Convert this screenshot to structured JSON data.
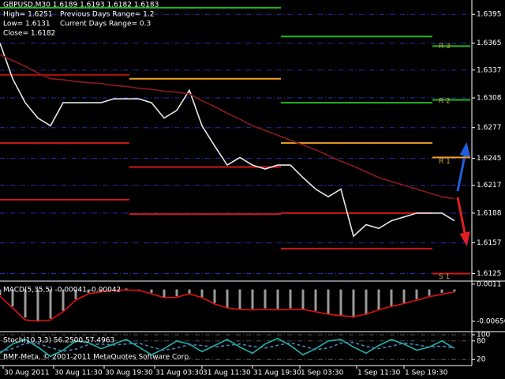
{
  "chart_data": [
    {
      "type": "line",
      "title": "GBPUSD,M30  1.6189 1.6193 1.6182 1.6183",
      "annotations": [
        "High= 1.6251",
        "Previous Days Range= 1.2",
        "Low= 1.6131",
        "Current Days Range= 0.3",
        "Close= 1.6182"
      ],
      "x": [
        0,
        4,
        8,
        12,
        16,
        20,
        24,
        28,
        32,
        36,
        40,
        44,
        48,
        52,
        56,
        60,
        64,
        68,
        72,
        76,
        80,
        84,
        88,
        92,
        96,
        100,
        104,
        108,
        112,
        116,
        120,
        124,
        128,
        132,
        136,
        140,
        144
      ],
      "series": [
        {
          "type": "line",
          "color": "#e8e8e8",
          "values": [
            1.6365,
            1.6328,
            1.6303,
            1.6287,
            1.6279,
            1.6303,
            1.6303,
            1.6303,
            1.6303,
            1.6307,
            1.6307,
            1.6307,
            1.6303,
            1.6287,
            1.6295,
            1.6316,
            1.6279,
            1.6258,
            1.6238,
            1.6246,
            1.6238,
            1.6234,
            1.6238,
            1.6238,
            1.6225,
            1.6213,
            1.6205,
            1.6213,
            1.6164,
            1.6176,
            1.6172,
            1.618,
            1.6184,
            1.6188,
            1.6188,
            1.6188,
            1.618
          ]
        },
        {
          "type": "line",
          "color": "#8b1a1a",
          "values": [
            1.6353,
            1.6347,
            1.6341,
            1.6334,
            1.6328,
            1.6327,
            1.6325,
            1.6324,
            1.6323,
            1.6321,
            1.632,
            1.6318,
            1.6317,
            1.6315,
            1.6314,
            1.6312,
            1.6305,
            1.6299,
            1.6292,
            1.6286,
            1.6279,
            1.6274,
            1.6269,
            1.6264,
            1.6259,
            1.6254,
            1.6248,
            1.6242,
            1.6237,
            1.6231,
            1.6225,
            1.6221,
            1.6217,
            1.6213,
            1.6209,
            1.6205,
            1.6203
          ]
        }
      ],
      "pivot_segments": [
        {
          "from": 0,
          "to": 41,
          "levels": [
            {
              "value": 1.6402,
              "color": "#22b822"
            },
            {
              "value": 1.6332,
              "color": "#b01010"
            },
            {
              "value": 1.6261,
              "color": "#d01818"
            },
            {
              "value": 1.6202,
              "color": "#d01818"
            }
          ]
        },
        {
          "from": 41,
          "to": 89,
          "levels": [
            {
              "value": 1.6402,
              "color": "#22b822"
            },
            {
              "value": 1.6328,
              "color": "#f0a020"
            },
            {
              "value": 1.6236,
              "color": "#d01818"
            },
            {
              "value": 1.6187,
              "color": "#d01818"
            }
          ]
        },
        {
          "from": 89,
          "to": 137,
          "levels": [
            {
              "value": 1.6372,
              "color": "#22b822"
            },
            {
              "value": 1.6303,
              "color": "#22b822"
            },
            {
              "value": 1.6261,
              "color": "#f0a020"
            },
            {
              "value": 1.6188,
              "color": "#d01818"
            },
            {
              "value": 1.6151,
              "color": "#d01818"
            }
          ]
        },
        {
          "from": 137,
          "to": 149,
          "levels": [
            {
              "value": 1.6362,
              "color": "#22b822"
            },
            {
              "value": 1.6306,
              "color": "#22b822"
            },
            {
              "value": 1.6246,
              "color": "#f0a020"
            },
            {
              "value": 1.6125,
              "color": "#d01818"
            }
          ]
        }
      ],
      "pivot_labels": [
        {
          "label": "R 3",
          "value": 1.6365
        },
        {
          "label": "R 2",
          "value": 1.6308
        },
        {
          "label": "R 1",
          "value": 1.6245
        },
        {
          "label": "S 1",
          "value": 1.6125
        }
      ],
      "xlim": [
        0,
        149
      ],
      "xticks": [
        {
          "value": 1,
          "label": "30 Aug 2011"
        },
        {
          "value": 17,
          "label": "30 Aug 11:30"
        },
        {
          "value": 33,
          "label": "30 Aug 19:30"
        },
        {
          "value": 49,
          "label": "31 Aug 03:30"
        },
        {
          "value": 64,
          "label": "31 Aug 11:30"
        },
        {
          "value": 80,
          "label": "31 Aug 19:30"
        },
        {
          "value": 95,
          "label": "1 Sep 03:30"
        },
        {
          "value": 113,
          "label": "1 Sep 11:30"
        },
        {
          "value": 128,
          "label": "1 Sep 19:30"
        }
      ],
      "ylim": [
        1.6118,
        1.641
      ],
      "yticks": [
        1.6395,
        1.6365,
        1.6337,
        1.6308,
        1.6277,
        1.6245,
        1.6217,
        1.6188,
        1.6157,
        1.6125
      ],
      "grid": true
    },
    {
      "type": "line",
      "title": "MACD(5,35,5) -0.00041 -0.00042",
      "x": [
        0,
        4,
        8,
        12,
        16,
        20,
        24,
        28,
        32,
        36,
        40,
        44,
        48,
        52,
        56,
        60,
        64,
        68,
        72,
        76,
        80,
        84,
        88,
        92,
        96,
        100,
        104,
        108,
        112,
        116,
        120,
        124,
        128,
        132,
        136,
        140,
        144
      ],
      "series": [
        {
          "type": "bar",
          "color": "#9a9a9a",
          "values": [
            -0.0012,
            -0.0035,
            -0.0058,
            -0.0066,
            -0.006,
            -0.0044,
            -0.002,
            -0.0007,
            -0.0003,
            0,
            0.0002,
            -0.0001,
            -0.0007,
            -0.0016,
            -0.0014,
            -0.0008,
            -0.0016,
            -0.0028,
            -0.0037,
            -0.004,
            -0.004,
            -0.0039,
            -0.004,
            -0.0039,
            -0.0041,
            -0.0044,
            -0.005,
            -0.0053,
            -0.0058,
            -0.0052,
            -0.0043,
            -0.0035,
            -0.0028,
            -0.002,
            -0.0013,
            -0.0007,
            -0.0004
          ]
        },
        {
          "type": "line",
          "color": "#e01010",
          "values": [
            -0.0014,
            -0.0038,
            -0.0063,
            -0.0065,
            -0.0063,
            -0.0046,
            -0.0022,
            -0.0009,
            -0.0005,
            -0.0002,
            -0.0001,
            -0.0002,
            -0.0009,
            -0.0017,
            -0.0016,
            -0.0009,
            -0.0017,
            -0.003,
            -0.0038,
            -0.0041,
            -0.0042,
            -0.0041,
            -0.0042,
            -0.0041,
            -0.0041,
            -0.0046,
            -0.0051,
            -0.0054,
            -0.0056,
            -0.0051,
            -0.0042,
            -0.0035,
            -0.0029,
            -0.0022,
            -0.0015,
            -0.001,
            -0.0005
          ]
        }
      ],
      "xlim": [
        0,
        149
      ],
      "ylim": [
        -0.0069,
        0.0014
      ],
      "yticks": [
        0.0011,
        -0.00656
      ],
      "grid": false
    },
    {
      "type": "line",
      "title": "Stoch(10,3,3) 56.2500 57.4963",
      "x": [
        0,
        4,
        8,
        12,
        16,
        20,
        24,
        28,
        32,
        36,
        40,
        44,
        48,
        52,
        56,
        60,
        64,
        68,
        72,
        76,
        80,
        84,
        88,
        92,
        96,
        100,
        104,
        108,
        112,
        116,
        120,
        124,
        128,
        132,
        136,
        140,
        144
      ],
      "series": [
        {
          "type": "line",
          "color": "#20b2aa",
          "values": [
            40,
            70,
            85,
            60,
            30,
            50,
            80,
            75,
            55,
            70,
            85,
            60,
            35,
            55,
            80,
            70,
            45,
            65,
            85,
            60,
            40,
            70,
            88,
            65,
            35,
            55,
            80,
            85,
            60,
            40,
            65,
            85,
            70,
            50,
            60,
            80,
            56
          ]
        },
        {
          "type": "line",
          "color": "#4682b4",
          "dashed": true,
          "values": [
            45,
            55,
            72,
            72,
            58,
            47,
            53,
            68,
            70,
            67,
            70,
            73,
            60,
            50,
            57,
            68,
            65,
            60,
            65,
            70,
            62,
            57,
            66,
            74,
            63,
            52,
            57,
            73,
            75,
            62,
            55,
            63,
            73,
            68,
            60,
            63,
            57
          ]
        }
      ],
      "xlim": [
        0,
        149
      ],
      "ylim": [
        0,
        100
      ],
      "yticks": [
        100,
        80,
        20
      ],
      "grid": true
    }
  ],
  "copyright": "BMF-Meta, © 2001-2011 MetaQuotes Software Corp."
}
